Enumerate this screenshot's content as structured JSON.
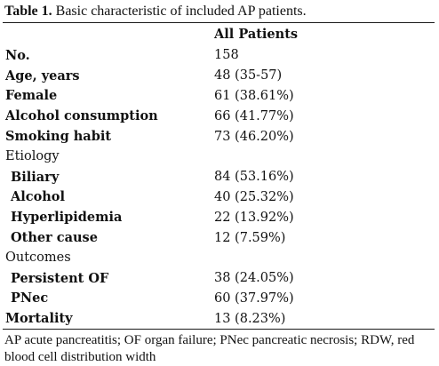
{
  "caption": {
    "label": "Table 1.",
    "text": " Basic characteristic of included AP patients."
  },
  "table": {
    "header": [
      "",
      "All Patients"
    ],
    "rows": [
      {
        "label": "No.",
        "value": "158",
        "style": "bold"
      },
      {
        "label": "Age, years",
        "value": "48 (35-57)",
        "style": "bold"
      },
      {
        "label": "Female",
        "value": "61 (38.61%)",
        "style": "bold"
      },
      {
        "label": "Alcohol consumption",
        "value": "66 (41.77%)",
        "style": "bold"
      },
      {
        "label": "Smoking habit",
        "value": "73 (46.20%)",
        "style": "bold"
      },
      {
        "label": "Etiology",
        "value": "",
        "style": "plain"
      },
      {
        "label": "Biliary",
        "value": "84 (53.16%)",
        "style": "indent"
      },
      {
        "label": "Alcohol",
        "value": "40 (25.32%)",
        "style": "indent"
      },
      {
        "label": "Hyperlipidemia",
        "value": "22 (13.92%)",
        "style": "indent"
      },
      {
        "label": "Other cause",
        "value": "12 (7.59%)",
        "style": "indent"
      },
      {
        "label": "Outcomes",
        "value": "",
        "style": "plain"
      },
      {
        "label": "Persistent OF",
        "value": "38 (24.05%)",
        "style": "indent"
      },
      {
        "label": "PNec",
        "value": "60 (37.97%)",
        "style": "indent"
      },
      {
        "label": "Mortality",
        "value": "13 (8.23%)",
        "style": "bold"
      }
    ]
  },
  "footnote": "AP acute pancreatitis; OF organ failure; PNec pancreatic necrosis; RDW, red blood cell distribution width"
}
